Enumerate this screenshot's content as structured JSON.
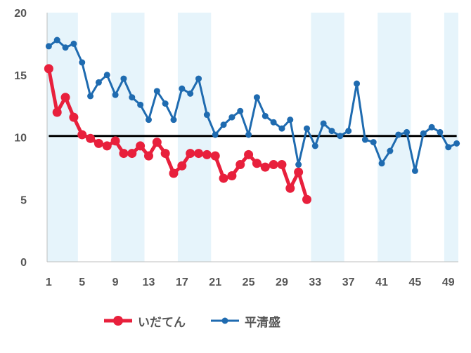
{
  "chart_data": {
    "type": "line",
    "ylim": [
      0,
      20
    ],
    "yticks": [
      "0",
      "5",
      "10",
      "15",
      "20"
    ],
    "x_tick_labels": [
      "1",
      "5",
      "9",
      "13",
      "17",
      "21",
      "25",
      "29",
      "33",
      "37",
      "41",
      "45",
      "49"
    ],
    "x_tick_values": [
      1,
      5,
      9,
      13,
      17,
      21,
      25,
      29,
      33,
      37,
      41,
      45,
      49
    ],
    "xlim": [
      0.8,
      50.2
    ],
    "reference_line": {
      "y": 10.1,
      "color": "#000000"
    },
    "shaded_bands": [
      [
        1,
        4
      ],
      [
        9,
        12
      ],
      [
        17,
        20
      ],
      [
        33,
        36
      ],
      [
        41,
        44
      ],
      [
        49,
        50
      ]
    ],
    "band_color": "#e6f4fb",
    "series": [
      {
        "name": "いだてん",
        "color": "#e8203c",
        "x": [
          1,
          2,
          3,
          4,
          5,
          6,
          7,
          8,
          9,
          10,
          11,
          12,
          13,
          14,
          15,
          16,
          17,
          18,
          19,
          20,
          21,
          22,
          23,
          24,
          25,
          26,
          27,
          28,
          29,
          30,
          31,
          32
        ],
        "values": [
          15.5,
          12.0,
          13.2,
          11.6,
          10.2,
          9.9,
          9.5,
          9.3,
          9.7,
          8.7,
          8.7,
          9.3,
          8.5,
          9.6,
          8.7,
          7.1,
          7.7,
          8.7,
          8.7,
          8.6,
          8.5,
          6.7,
          6.9,
          7.8,
          8.6,
          7.9,
          7.6,
          7.8,
          7.8,
          5.9,
          7.2,
          5.0
        ]
      },
      {
        "name": "平清盛",
        "color": "#1f6bb0",
        "x": [
          1,
          2,
          3,
          4,
          5,
          6,
          7,
          8,
          9,
          10,
          11,
          12,
          13,
          14,
          15,
          16,
          17,
          18,
          19,
          20,
          21,
          22,
          23,
          24,
          25,
          26,
          27,
          28,
          29,
          30,
          31,
          32,
          33,
          34,
          35,
          36,
          37,
          38,
          39,
          40,
          41,
          42,
          43,
          44,
          45,
          46,
          47,
          48,
          49,
          50
        ],
        "values": [
          17.3,
          17.8,
          17.2,
          17.5,
          16.0,
          13.3,
          14.4,
          15.0,
          13.4,
          14.7,
          13.2,
          12.6,
          11.4,
          13.7,
          12.7,
          11.4,
          13.9,
          13.5,
          14.7,
          11.8,
          10.2,
          11.0,
          11.6,
          12.1,
          10.2,
          13.2,
          11.7,
          11.2,
          10.7,
          11.4,
          7.8,
          10.7,
          9.3,
          11.1,
          10.5,
          10.1,
          10.5,
          14.3,
          9.8,
          9.6,
          7.9,
          8.9,
          10.2,
          10.4,
          7.3,
          10.3,
          10.8,
          10.4,
          9.2,
          9.5
        ]
      }
    ]
  }
}
